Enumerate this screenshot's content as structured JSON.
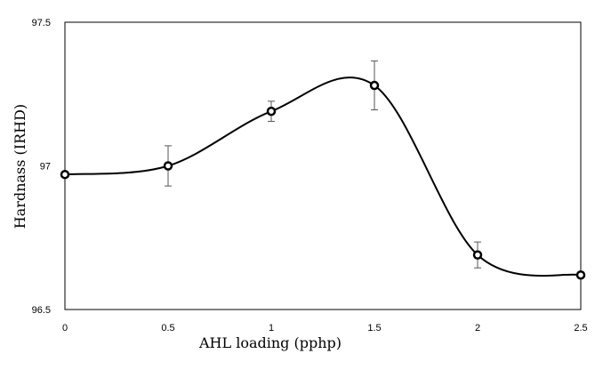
{
  "chart_data": {
    "type": "scatter",
    "xlabel": "AHL loading (pphp)",
    "ylabel": "Hardnass (IRHD)",
    "xlim": [
      0,
      2.5
    ],
    "ylim": [
      96.5,
      97.5
    ],
    "x_ticks": [
      "0",
      "0.5",
      "1",
      "1.5",
      "2",
      "2.5"
    ],
    "y_ticks": [
      "96.5",
      "97",
      "97.5"
    ],
    "grid": false,
    "legend": "none",
    "smoothed_line": true,
    "series": [
      {
        "x": [
          0,
          0.5,
          1,
          1.5,
          2,
          2.5
        ],
        "y": [
          96.97,
          97.0,
          97.19,
          97.28,
          96.69,
          96.62
        ],
        "error": [
          0,
          0.07,
          0.035,
          0.085,
          0.045,
          0
        ]
      }
    ],
    "colors": {
      "line": "#000000",
      "marker_fill": "#ffffff",
      "error_bar": "#555555"
    }
  }
}
